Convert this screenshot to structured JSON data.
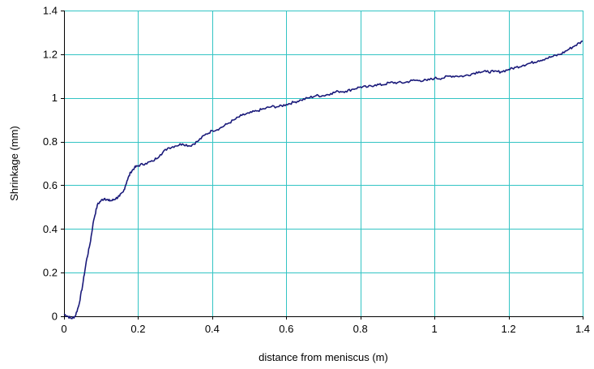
{
  "chart_data": {
    "type": "line",
    "title": "",
    "xlabel": "distance from meniscus (m)",
    "ylabel": "Shrinkage (mm)",
    "xlim": [
      0,
      1.4
    ],
    "ylim": [
      0,
      1.4
    ],
    "x_ticks": [
      "0",
      "0.2",
      "0.4",
      "0.6",
      "0.8",
      "1",
      "1.2",
      "1.4"
    ],
    "y_ticks": [
      "0",
      "0.2",
      "0.4",
      "0.6",
      "0.8",
      "1",
      "1.2",
      "1.4"
    ],
    "grid": true,
    "legend": false,
    "colors": {
      "series": "#1a1a7a",
      "grid": "#33c4c4",
      "axis": "#000000"
    },
    "series": [
      {
        "x": [
          0,
          0.01,
          0.02,
          0.03,
          0.04,
          0.05,
          0.06,
          0.07,
          0.08,
          0.09,
          0.1,
          0.11,
          0.12,
          0.13,
          0.14,
          0.15,
          0.16,
          0.17,
          0.18,
          0.19,
          0.2,
          0.22,
          0.24,
          0.26,
          0.28,
          0.3,
          0.32,
          0.34,
          0.36,
          0.38,
          0.4,
          0.42,
          0.44,
          0.46,
          0.48,
          0.5,
          0.52,
          0.54,
          0.56,
          0.58,
          0.6,
          0.62,
          0.64,
          0.66,
          0.68,
          0.7,
          0.72,
          0.74,
          0.76,
          0.78,
          0.8,
          0.82,
          0.84,
          0.86,
          0.88,
          0.9,
          0.92,
          0.94,
          0.96,
          0.98,
          1.0,
          1.02,
          1.04,
          1.06,
          1.08,
          1.1,
          1.12,
          1.14,
          1.16,
          1.18,
          1.2,
          1.22,
          1.24,
          1.26,
          1.28,
          1.3,
          1.32,
          1.34,
          1.36,
          1.38,
          1.4
        ],
        "y": [
          0.01,
          0.0,
          -0.01,
          0.0,
          0.05,
          0.14,
          0.25,
          0.33,
          0.44,
          0.51,
          0.53,
          0.54,
          0.53,
          0.53,
          0.54,
          0.55,
          0.57,
          0.62,
          0.66,
          0.68,
          0.69,
          0.7,
          0.71,
          0.74,
          0.77,
          0.78,
          0.79,
          0.78,
          0.8,
          0.83,
          0.85,
          0.86,
          0.88,
          0.9,
          0.92,
          0.93,
          0.94,
          0.95,
          0.96,
          0.96,
          0.97,
          0.98,
          0.99,
          1.0,
          1.01,
          1.01,
          1.02,
          1.03,
          1.03,
          1.04,
          1.05,
          1.05,
          1.06,
          1.06,
          1.07,
          1.07,
          1.07,
          1.08,
          1.08,
          1.08,
          1.09,
          1.09,
          1.1,
          1.1,
          1.1,
          1.11,
          1.12,
          1.12,
          1.12,
          1.12,
          1.13,
          1.14,
          1.15,
          1.16,
          1.17,
          1.18,
          1.19,
          1.2,
          1.22,
          1.24,
          1.26
        ]
      }
    ]
  }
}
